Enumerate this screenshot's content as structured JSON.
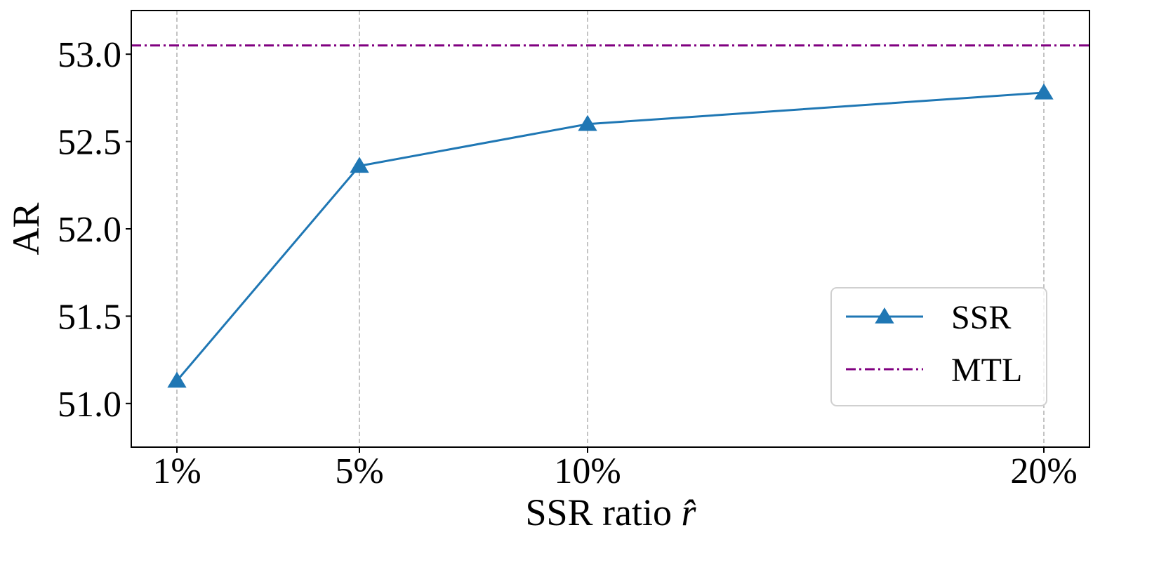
{
  "chart_data": {
    "type": "line",
    "title": "",
    "xlabel": "SSR ratio",
    "xlabel_symbol": "r̂",
    "ylabel": "AR",
    "categories": [
      "1%",
      "5%",
      "10%",
      "20%"
    ],
    "x": [
      1,
      5,
      10,
      20
    ],
    "xlim": [
      0,
      21
    ],
    "ylim": [
      50.75,
      53.25
    ],
    "yticks": [
      "51.0",
      "51.5",
      "52.0",
      "52.5",
      "53.0"
    ],
    "ytick_values": [
      51.0,
      51.5,
      52.0,
      52.5,
      53.0
    ],
    "grid": "vertical dashed",
    "legend_position": "lower right",
    "series": [
      {
        "name": "SSR",
        "values": [
          51.13,
          52.36,
          52.6,
          52.78
        ],
        "color": "#1f77b4",
        "marker": "triangle",
        "style": "solid"
      }
    ],
    "reference_lines": [
      {
        "name": "MTL",
        "value": 53.05,
        "color": "#800080",
        "style": "dash-dot"
      }
    ]
  }
}
